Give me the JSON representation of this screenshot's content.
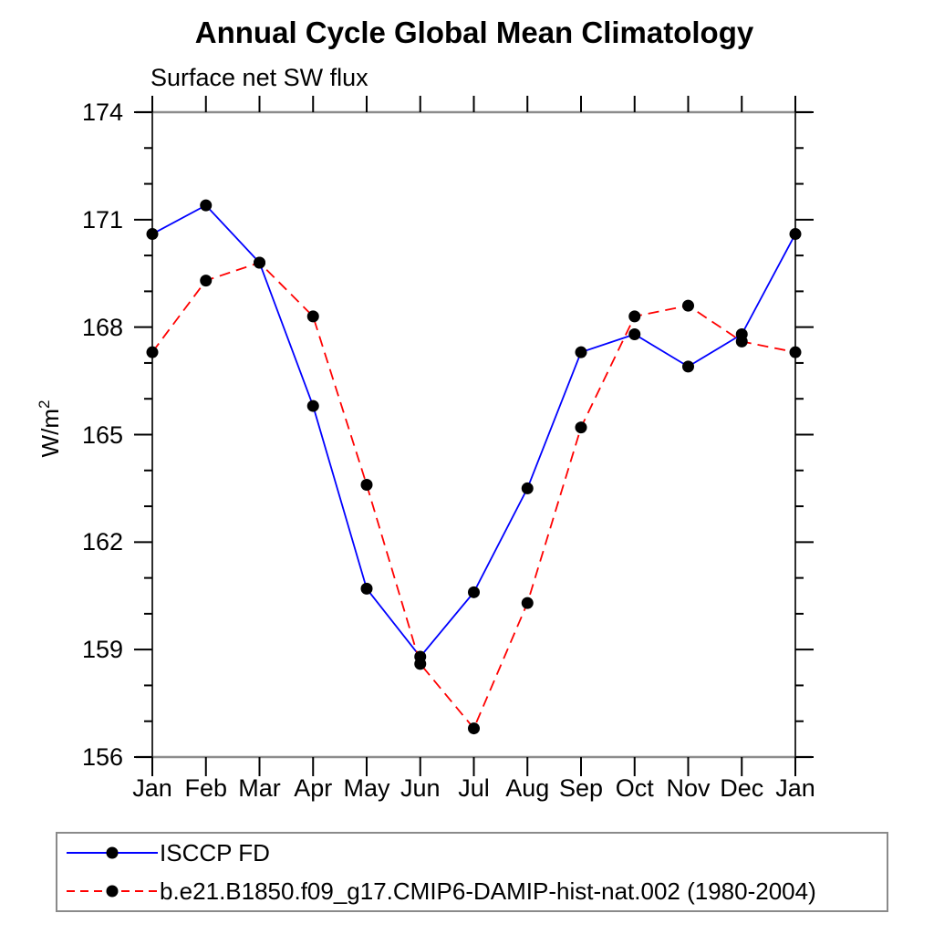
{
  "title": "Annual Cycle Global Mean Climatology",
  "subtitle": "Surface net SW flux",
  "y_axis_label": {
    "base": "W/m",
    "exponent": "2"
  },
  "chart_data": {
    "type": "line",
    "title": "Annual Cycle Global Mean Climatology",
    "subtitle": "Surface net SW flux",
    "xlabel": "",
    "ylabel": "W/m^2",
    "categories": [
      "Jan",
      "Feb",
      "Mar",
      "Apr",
      "May",
      "Jun",
      "Jul",
      "Aug",
      "Sep",
      "Oct",
      "Nov",
      "Dec",
      "Jan"
    ],
    "ylim": [
      156,
      174
    ],
    "yticks_major": [
      156,
      159,
      162,
      165,
      168,
      171,
      174
    ],
    "ytick_minor_step": 1,
    "grid": false,
    "legend_position": "bottom-left-boxed",
    "marker": "filled-circle",
    "marker_color": "#000000",
    "series": [
      {
        "name": "ISCCP FD",
        "color": "#0000ff",
        "line_style": "solid",
        "values": [
          170.6,
          171.4,
          169.8,
          165.8,
          160.7,
          158.8,
          160.6,
          163.5,
          167.3,
          167.8,
          166.9,
          167.8,
          170.6
        ]
      },
      {
        "name": "b.e21.B1850.f09_g17.CMIP6-DAMIP-hist-nat.002 (1980-2004)",
        "color": "#ff0000",
        "line_style": "dashed",
        "values": [
          167.3,
          169.3,
          169.8,
          168.3,
          163.6,
          158.6,
          156.8,
          160.3,
          165.2,
          168.3,
          168.6,
          167.6,
          167.3
        ]
      }
    ]
  }
}
